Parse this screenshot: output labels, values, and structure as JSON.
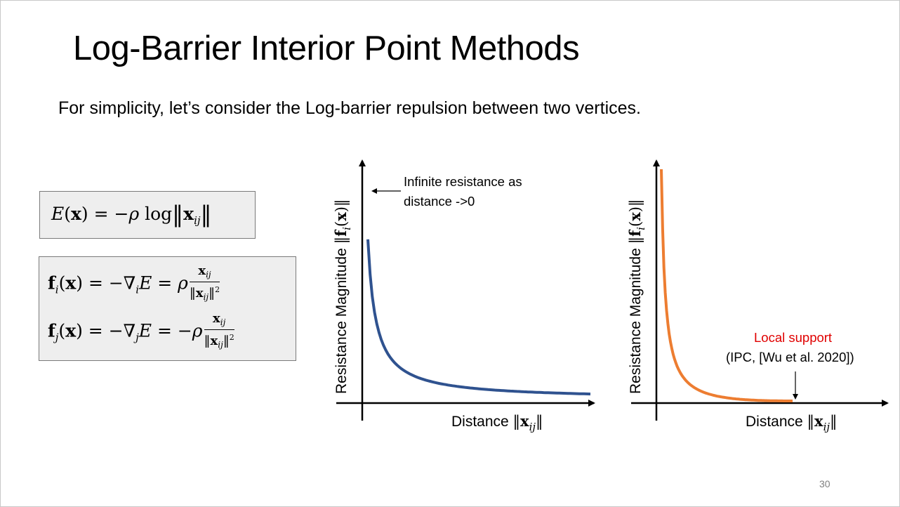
{
  "slide": {
    "title": "Log-Barrier Interior Point Methods",
    "subtitle": "For simplicity, let’s consider the Log-barrier repulsion between two vertices.",
    "page_number": "30"
  },
  "equations": {
    "energy": "E(x) = −ρ log‖x_ij‖",
    "force_i": "f_i(x) = −∇_i E = ρ x_ij / ‖x_ij‖²",
    "force_j": "f_j(x) = −∇_j E = −ρ x_ij / ‖x_ij‖²"
  },
  "left_plot": {
    "ylabel": "Resistance Magnitude",
    "ylabel_math": "‖f_i(x)‖",
    "xlabel": "Distance",
    "xlabel_math": "‖x_ij‖",
    "annotation_line1": "Infinite resistance as",
    "annotation_line2": "distance ->0",
    "curve_color": "#2F528F"
  },
  "right_plot": {
    "ylabel": "Resistance Magnitude",
    "ylabel_math": "‖f_i(x)‖",
    "xlabel": "Distance",
    "xlabel_math": "‖x_ij‖",
    "annotation_red": "Local support",
    "annotation_ref": "(IPC, [Wu et al. 2020])",
    "curve_color": "#ED7D31",
    "annotation_red_color": "#E00000"
  }
}
